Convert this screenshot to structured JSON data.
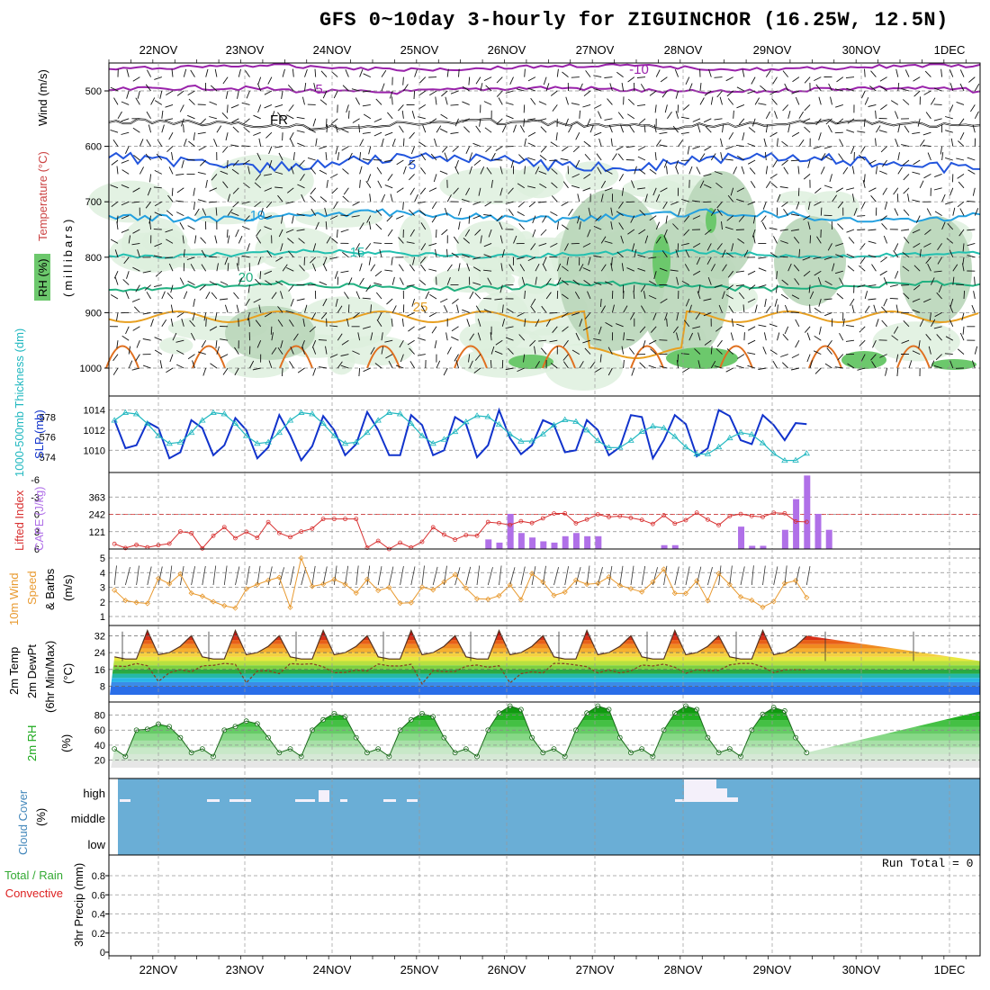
{
  "title": "GFS 0~10day 3-hourly for ZIGUINCHOR (16.25W, 12.5N)",
  "run_total": "Run Total = 0",
  "dates": [
    "22NOV",
    "23NOV",
    "24NOV",
    "25NOV",
    "26NOV",
    "27NOV",
    "28NOV",
    "29NOV",
    "30NOV",
    "1DEC"
  ],
  "colors": {
    "temp_cold": "#3366dd",
    "temp_hot": "#e8a020",
    "rh": "#9fcf9f",
    "slp": "#1133cc",
    "thickness": "#22b8c0",
    "lifted": "#d83030",
    "cape": "#b070e8",
    "wind": "#e89a30",
    "cloud": "#6aaed6",
    "rh2m": "#1aa81a"
  },
  "chart_data": [
    {
      "type": "contour",
      "panel": "upper-air",
      "ylabel_parts": [
        "RH (%)",
        "Temperature (°C)",
        "Wind (m/s)",
        "(millibars)"
      ],
      "yticks": [
        "500",
        "600",
        "700",
        "800",
        "900",
        "1000"
      ],
      "contour_labels": [
        "-10",
        "-5",
        "FR",
        "5",
        "10",
        "15",
        "20",
        "25"
      ]
    },
    {
      "type": "line",
      "panel": "slp-thickness",
      "ylabel_left": "1000-500mb Thickness (dm)",
      "ylabel_right": "SLP (mb)",
      "yticks_left": [
        "574",
        "576",
        "578"
      ],
      "yticks_right": [
        "1010",
        "1012",
        "1014"
      ],
      "slp": [
        1013.0,
        1010.2,
        1010.5,
        1012.8,
        1012.2,
        1009.2,
        1009.8,
        1013.0,
        1012.2,
        1009.5,
        1010.5,
        1013.2,
        1012.0,
        1009.2,
        1010.3,
        1013.5,
        1011.5,
        1009.0,
        1010.4,
        1013.4,
        1012.0,
        1009.5,
        1010.6,
        1013.8,
        1012.0,
        1009.5,
        1009.5,
        1013.5,
        1012.5,
        1009.5,
        1010.0,
        1013.3,
        1012.6,
        1009.3,
        1010.5,
        1014.0,
        1011.2,
        1009.6,
        1010.5,
        1013.0,
        1012.5,
        1009.8,
        1010.0,
        1013.0,
        1012.0,
        1009.5,
        1010.3,
        1013.5,
        1013.3,
        1009.2,
        1011.0,
        1013.5,
        1012.6,
        1009.4,
        1010.2,
        1014.0,
        1013.4,
        1011.0,
        1010.6,
        1013.5,
        1012.5,
        1011.0,
        1012.7,
        1012.6
      ]
    },
    {
      "type": "bar",
      "panel": "cape-lifted",
      "ylabel_left": "Lifted Index",
      "ylabel_right": "CAPE (J/kg)",
      "yticks_left": [
        "-6",
        "-3",
        "0",
        "3",
        "6"
      ],
      "yticks_right": [
        "363",
        "242",
        "121"
      ]
    },
    {
      "type": "line",
      "panel": "wind10m",
      "ylabel": "10m Wind Speed & Barbs (m/s)",
      "yticks": [
        "1",
        "2",
        "3",
        "4",
        "5"
      ]
    },
    {
      "type": "area",
      "panel": "temp2m",
      "ylabel": "2m Temp 2m DewPt (6hr Min/Max) (°C)",
      "yticks": [
        "8",
        "16",
        "24",
        "32"
      ]
    },
    {
      "type": "area",
      "panel": "rh2m",
      "ylabel": "2m RH (%)",
      "yticks": [
        "20",
        "40",
        "60",
        "80"
      ]
    },
    {
      "type": "bar",
      "panel": "cloud",
      "ylabel": "Cloud Cover (%)",
      "yticks": [
        "high",
        "middle",
        "low"
      ]
    },
    {
      "type": "bar",
      "panel": "precip",
      "ylabel_top": "Total / Rain",
      "ylabel_bottom": "Convective",
      "ylabel": "3hr Precip (mm)",
      "yticks": [
        "0",
        "0.2",
        "0.4",
        "0.6",
        "0.8"
      ]
    }
  ]
}
